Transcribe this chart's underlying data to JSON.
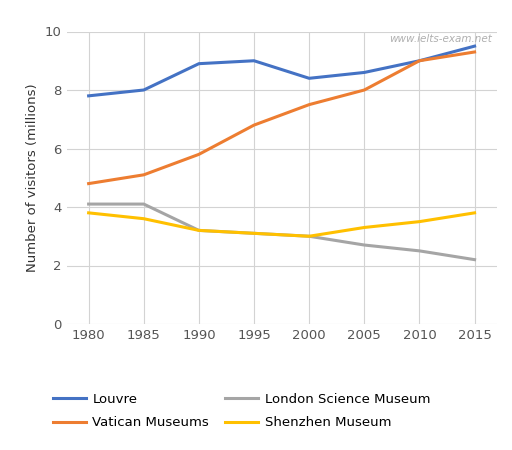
{
  "years": [
    1980,
    1985,
    1990,
    1995,
    2000,
    2005,
    2010,
    2015
  ],
  "louvre": [
    7.8,
    8.0,
    8.9,
    9.0,
    8.4,
    8.6,
    9.0,
    9.5
  ],
  "vatican": [
    4.8,
    5.1,
    5.8,
    6.8,
    7.5,
    8.0,
    9.0,
    9.3
  ],
  "london_science": [
    4.1,
    4.1,
    3.2,
    3.1,
    3.0,
    2.7,
    2.5,
    2.2
  ],
  "shenzhen": [
    3.8,
    3.6,
    3.2,
    3.1,
    3.0,
    3.3,
    3.5,
    3.8
  ],
  "colors": {
    "louvre": "#4472C4",
    "vatican": "#ED7D31",
    "london_science": "#A5A5A5",
    "shenzhen": "#FFC000"
  },
  "ylabel": "Number of visitors (millions)",
  "ylim": [
    0,
    10
  ],
  "yticks": [
    0,
    2,
    4,
    6,
    8,
    10
  ],
  "watermark": "www.ielts-exam.net",
  "legend_labels": [
    "Louvre",
    "Vatican Museums",
    "London Science Museum",
    "Shenzhen Museum"
  ],
  "legend_keys": [
    "louvre",
    "vatican",
    "london_science",
    "shenzhen"
  ],
  "background_color": "#ffffff",
  "grid_color": "#d3d3d3",
  "linewidth": 2.2
}
